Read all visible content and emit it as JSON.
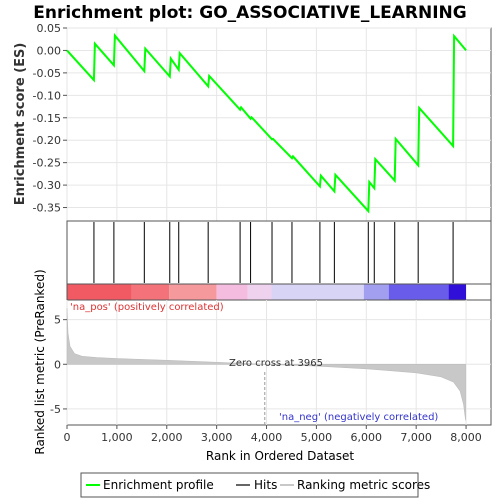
{
  "chart_data": {
    "type": "line",
    "title": "Enrichment plot: GO_ASSOCIATIVE_LEARNING",
    "es_panel": {
      "ylabel": "Enrichment score (ES)",
      "ylim": [
        -0.38,
        0.05
      ],
      "yticks": [
        0.05,
        0.0,
        -0.05,
        -0.1,
        -0.15,
        -0.2,
        -0.25,
        -0.3,
        -0.35
      ],
      "ytick_labels": [
        "0.05",
        "0.00",
        "-0.05",
        "-0.10",
        "-0.15",
        "-0.20",
        "-0.25",
        "-0.30",
        "-0.35"
      ],
      "series": [
        {
          "name": "Enrichment profile",
          "color": "#00ff00",
          "x": [
            0,
            540,
            560,
            940,
            960,
            1550,
            1570,
            2060,
            2080,
            2240,
            2260,
            2830,
            2850,
            3470,
            3490,
            3680,
            3700,
            4110,
            4130,
            4510,
            4530,
            5070,
            5090,
            5360,
            5380,
            6040,
            6060,
            6160,
            6180,
            6570,
            6590,
            7040,
            7060,
            7740,
            7760,
            8000
          ],
          "y": [
            0.0,
            -0.066,
            0.015,
            -0.033,
            0.033,
            -0.046,
            0.004,
            -0.058,
            -0.018,
            -0.043,
            -0.006,
            -0.08,
            -0.057,
            -0.132,
            -0.127,
            -0.152,
            -0.149,
            -0.198,
            -0.197,
            -0.24,
            -0.236,
            -0.303,
            -0.279,
            -0.314,
            -0.277,
            -0.358,
            -0.293,
            -0.307,
            -0.242,
            -0.29,
            -0.197,
            -0.256,
            -0.128,
            -0.213,
            0.032,
            0.0
          ]
        }
      ]
    },
    "hits": {
      "name": "Hits",
      "positions": [
        540,
        940,
        1550,
        2060,
        2240,
        2830,
        3470,
        3680,
        4110,
        4510,
        5070,
        5360,
        6040,
        6160,
        6570,
        7040,
        7740
      ]
    },
    "ranked_panel": {
      "ylabel": "Ranked list metric (PreRanked)",
      "xlabel": "Rank in Ordered Dataset",
      "xlim": [
        0,
        8500
      ],
      "ylim": [
        -6.8,
        7.2
      ],
      "yticks": [
        5,
        0,
        -5
      ],
      "ytick_labels": [
        "5",
        "0",
        "-5"
      ],
      "xticks": [
        0,
        1000,
        2000,
        3000,
        4000,
        5000,
        6000,
        7000,
        8000
      ],
      "xtick_labels": [
        "0",
        "1,000",
        "2,000",
        "3,000",
        "4,000",
        "5,000",
        "6,000",
        "7,000",
        "8,000"
      ],
      "metric_profile": {
        "rank": [
          0,
          20,
          60,
          150,
          300,
          600,
          1000,
          2000,
          3000,
          3965,
          5000,
          6000,
          7000,
          7500,
          7750,
          7880,
          7950,
          7990
        ],
        "value": [
          6.3,
          3.5,
          2.0,
          1.2,
          0.9,
          0.75,
          0.65,
          0.45,
          0.22,
          0.0,
          -0.2,
          -0.5,
          -0.95,
          -1.4,
          -2.0,
          -3.0,
          -4.5,
          -6.3
        ]
      },
      "zero_cross_label": "Zero cross at 3965",
      "zero_cross_rank": 3965,
      "pos_label": "'na_pos' (positively correlated)",
      "neg_label": "'na_neg' (negatively correlated)"
    },
    "colorbar": {
      "segments": [
        {
          "end": 1300,
          "color": "#f25a63"
        },
        {
          "end": 2050,
          "color": "#f4727a"
        },
        {
          "end": 3000,
          "color": "#f6999d"
        },
        {
          "end": 3620,
          "color": "#f4bde0"
        },
        {
          "end": 4100,
          "color": "#efd2ee"
        },
        {
          "end": 5950,
          "color": "#d8d4f5"
        },
        {
          "end": 6450,
          "color": "#a29ef0"
        },
        {
          "end": 7650,
          "color": "#6a5ceb"
        },
        {
          "end": 8000,
          "color": "#3010d8"
        }
      ]
    },
    "legend": [
      {
        "label": "Enrichment profile",
        "color": "#00ff00"
      },
      {
        "label": "Hits",
        "color": "#666666"
      },
      {
        "label": "Ranking metric scores",
        "color": "#c8c8c8"
      }
    ]
  }
}
